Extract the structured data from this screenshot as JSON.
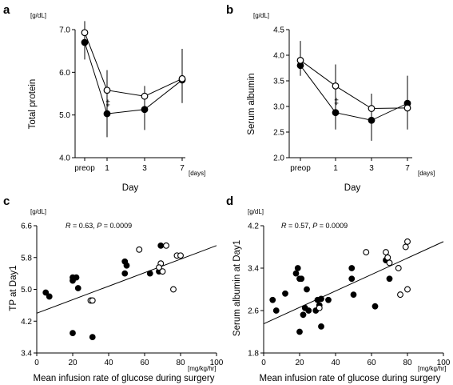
{
  "chart_data": [
    {
      "panel": "a",
      "type": "line",
      "ylabel": "Total protein",
      "yunit": "[g/dL]",
      "xlabel": "Day",
      "xunit": "[days]",
      "categories": [
        "preop",
        "1",
        "3",
        "7"
      ],
      "ylim": [
        4.0,
        7.0
      ],
      "yticks": [
        4.0,
        5.0,
        6.0,
        7.0
      ],
      "yticklabels": [
        "4.0",
        "5.0",
        "6.0",
        "7.0"
      ],
      "series": [
        {
          "marker": "open",
          "values": [
            6.93,
            5.58,
            5.44,
            5.85
          ],
          "err_low": [
            6.68,
            5.05,
            5.05,
            5.6
          ],
          "err_high": [
            7.2,
            6.05,
            5.68,
            6.05
          ]
        },
        {
          "marker": "filled",
          "values": [
            6.7,
            5.03,
            5.13,
            5.82
          ],
          "err_low": [
            6.3,
            4.48,
            4.65,
            5.28
          ],
          "err_high": [
            7.1,
            5.55,
            5.6,
            6.55
          ]
        }
      ],
      "significance": {
        "category": "1",
        "symbol": "‡",
        "y": 5.28
      }
    },
    {
      "panel": "b",
      "type": "line",
      "ylabel": "Serum albumin",
      "yunit": "[g/dL]",
      "xlabel": "Day",
      "xunit": "[days]",
      "categories": [
        "preop",
        "1",
        "3",
        "7"
      ],
      "ylim": [
        2.0,
        4.5
      ],
      "yticks": [
        2.0,
        2.5,
        3.0,
        3.5,
        4.0,
        4.5
      ],
      "yticklabels": [
        "2.0",
        "2.5",
        "3.0",
        "3.5",
        "4.0",
        "4.5"
      ],
      "series": [
        {
          "marker": "open",
          "values": [
            3.9,
            3.4,
            2.96,
            2.97
          ],
          "err_low": [
            3.6,
            3.05,
            2.7,
            2.55
          ],
          "err_high": [
            4.28,
            3.82,
            3.25,
            3.25
          ]
        },
        {
          "marker": "filled",
          "values": [
            3.8,
            2.88,
            2.73,
            3.06
          ],
          "err_low": [
            3.6,
            2.55,
            2.33,
            2.62
          ],
          "err_high": [
            4.05,
            3.3,
            3.05,
            3.6
          ]
        }
      ],
      "significance": {
        "category": "1",
        "symbol": "‡",
        "y": 3.1
      }
    },
    {
      "panel": "c",
      "type": "scatter",
      "ylabel": "TP at Day1",
      "yunit": "[g/dL]",
      "xlabel": "Mean infusion rate of glucose during surgery",
      "xunit": "[mg/kg/hr]",
      "annotation": {
        "r_label": "R",
        "r_value": " = 0.63, ",
        "p_label": "P",
        "p_value": " = 0.0009"
      },
      "xlim": [
        0,
        100
      ],
      "xticks": [
        0,
        20,
        40,
        60,
        80,
        100
      ],
      "xticklabels": [
        "0",
        "20",
        "40",
        "60",
        "80",
        "100"
      ],
      "ylim": [
        3.4,
        6.6
      ],
      "yticks": [
        3.4,
        4.2,
        5.0,
        5.8,
        6.6
      ],
      "yticklabels": [
        "3.4",
        "4.2",
        "5.0",
        "5.8",
        "6.6"
      ],
      "regression": {
        "x": [
          0,
          100
        ],
        "y": [
          4.4,
          6.1
        ]
      },
      "filled": {
        "x": [
          5,
          7,
          20,
          20,
          22,
          23,
          20,
          31,
          49,
          50,
          49,
          63,
          68,
          69
        ],
        "y": [
          4.92,
          4.82,
          5.3,
          5.22,
          5.3,
          5.03,
          3.9,
          3.8,
          5.7,
          5.6,
          5.4,
          5.4,
          5.45,
          6.1
        ]
      },
      "open": {
        "x": [
          30,
          31,
          57,
          69,
          68,
          70,
          72,
          76,
          78,
          80
        ],
        "y": [
          4.72,
          4.72,
          6.0,
          5.65,
          5.55,
          5.45,
          6.1,
          5.0,
          5.85,
          5.85
        ]
      }
    },
    {
      "panel": "d",
      "type": "scatter",
      "ylabel": "Serum albumin at Day1",
      "yunit": "[g/dL]",
      "xlabel": "Mean infusion rate of glucose during surgery",
      "xunit": "[mg/kg/hr]",
      "annotation": {
        "r_label": "R",
        "r_value": " = 0.57, ",
        "p_label": "P",
        "p_value": " = 0.0009"
      },
      "xlim": [
        0,
        100
      ],
      "xticks": [
        0,
        20,
        40,
        60,
        80,
        100
      ],
      "xticklabels": [
        "0",
        "20",
        "40",
        "60",
        "80",
        "100"
      ],
      "ylim": [
        1.8,
        4.2
      ],
      "yticks": [
        1.8,
        2.6,
        3.4,
        4.2
      ],
      "yticklabels": [
        "1.8",
        "2.6",
        "3.4",
        "4.2"
      ],
      "regression": {
        "x": [
          0,
          100
        ],
        "y": [
          2.35,
          3.9
        ]
      },
      "filled": {
        "x": [
          5,
          7,
          12,
          18,
          19,
          20,
          20,
          21,
          22,
          23,
          24,
          25,
          29,
          30,
          31,
          32,
          32,
          36,
          49,
          50,
          49,
          62,
          68,
          70
        ],
        "y": [
          2.8,
          2.6,
          2.92,
          3.3,
          3.4,
          2.2,
          3.2,
          3.2,
          2.52,
          2.65,
          3.0,
          2.6,
          2.6,
          2.8,
          2.7,
          2.82,
          2.3,
          2.8,
          3.4,
          2.9,
          3.2,
          2.68,
          3.55,
          3.2
        ]
      },
      "open": {
        "x": [
          31,
          57,
          68,
          69,
          70,
          75,
          76,
          79,
          80,
          80
        ],
        "y": [
          2.65,
          3.7,
          3.7,
          3.6,
          3.5,
          3.4,
          2.9,
          3.8,
          3.9,
          3.0
        ]
      }
    }
  ]
}
